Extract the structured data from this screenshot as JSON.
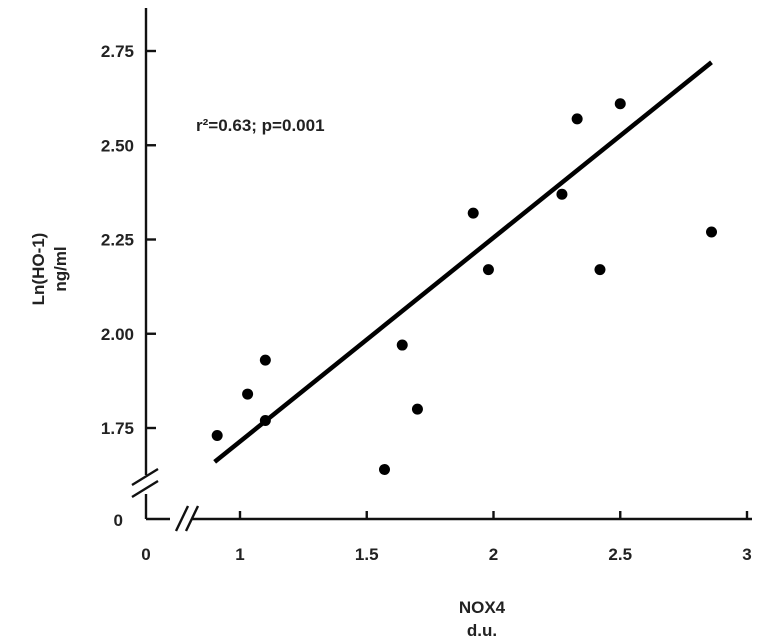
{
  "chart_data": {
    "type": "scatter",
    "xlabel": "NOX4",
    "xunit": "d.u.",
    "ylabel": "Ln(HO-1)",
    "yunit": "ng/ml",
    "annotation_r2": "r²=0.63; p=0.001",
    "xlim": [
      0,
      3
    ],
    "ylim": [
      1.6,
      2.8
    ],
    "axis_break": true,
    "x_ticks": [
      {
        "value": 0,
        "label": "0"
      },
      {
        "value": 1,
        "label": "1"
      },
      {
        "value": 1.5,
        "label": "1.5"
      },
      {
        "value": 2,
        "label": "2"
      },
      {
        "value": 2.5,
        "label": "2.5"
      },
      {
        "value": 3,
        "label": "3"
      }
    ],
    "y_ticks": [
      {
        "value": 1.75,
        "label": "1.75"
      },
      {
        "value": 2.0,
        "label": "2.00"
      },
      {
        "value": 2.25,
        "label": "2.25"
      },
      {
        "value": 2.5,
        "label": "2.50"
      },
      {
        "value": 2.75,
        "label": "2.75"
      }
    ],
    "y_zero_label": "0",
    "points": [
      {
        "x": 0.91,
        "y": 1.73
      },
      {
        "x": 1.03,
        "y": 1.84
      },
      {
        "x": 1.1,
        "y": 1.93
      },
      {
        "x": 1.1,
        "y": 1.77
      },
      {
        "x": 1.57,
        "y": 1.64
      },
      {
        "x": 1.64,
        "y": 1.97
      },
      {
        "x": 1.7,
        "y": 1.8
      },
      {
        "x": 1.92,
        "y": 2.32
      },
      {
        "x": 1.98,
        "y": 2.17
      },
      {
        "x": 2.27,
        "y": 2.37
      },
      {
        "x": 2.33,
        "y": 2.57
      },
      {
        "x": 2.42,
        "y": 2.17
      },
      {
        "x": 2.5,
        "y": 2.61
      },
      {
        "x": 2.86,
        "y": 2.27
      }
    ],
    "regression_line": {
      "x": [
        0.9,
        2.86
      ],
      "y": [
        1.66,
        2.72
      ]
    },
    "grid": false,
    "legend": "none"
  }
}
